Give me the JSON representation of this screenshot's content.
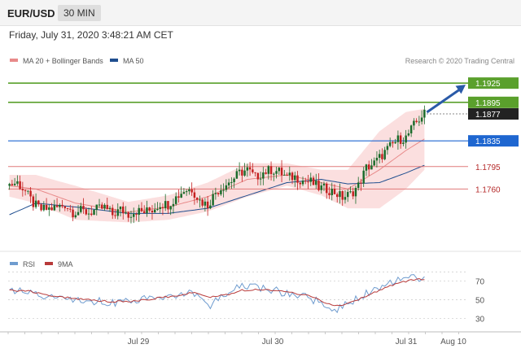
{
  "header": {
    "symbol": "EUR/USD",
    "timeframe": "30 MIN",
    "datetime": "Friday, July 31, 2020 3:48:21 AM CET"
  },
  "legend": {
    "items": [
      {
        "label": "MA 20 + Bollinger Bands",
        "color": "#e88a8a"
      },
      {
        "label": "MA 50",
        "color": "#1f4e8f"
      }
    ],
    "credit": "Research © 2020 Trading Central"
  },
  "colors": {
    "resistance": "#5aa02c",
    "pivot": "#1e66d0",
    "support": "#e07a7a",
    "support_text": "#b52a2a",
    "last_price": "#222222",
    "candle_up": "#1a6b2a",
    "candle_down": "#c42020",
    "arrow": "#2a5aa8",
    "rsi": "#6f9ccf",
    "rsi_ma": "#b83a3a"
  },
  "chart_data": [
    {
      "type": "candlestick",
      "title": "",
      "x_ticks": [
        "Jul 29",
        "Jul 30",
        "Jul 31",
        "Aug 10"
      ],
      "ylim": [
        1.1668,
        1.1948
      ],
      "levels": [
        {
          "value": 1.1925,
          "label": "1.1925",
          "kind": "resistance"
        },
        {
          "value": 1.1895,
          "label": "1.1895",
          "kind": "resistance"
        },
        {
          "value": 1.1877,
          "label": "1.1877",
          "kind": "last"
        },
        {
          "value": 1.1835,
          "label": "1.1835",
          "kind": "pivot"
        },
        {
          "value": 1.1795,
          "label": "1.1795",
          "kind": "support"
        },
        {
          "value": 1.176,
          "label": "1.1760",
          "kind": "support"
        }
      ],
      "arrow": {
        "from": 1.1877,
        "to": 1.1925,
        "direction": "up"
      },
      "close_anchors": [
        [
          0,
          1.1767
        ],
        [
          3,
          1.177
        ],
        [
          6,
          1.1756
        ],
        [
          9,
          1.1737
        ],
        [
          12,
          1.1728
        ],
        [
          15,
          1.1729
        ],
        [
          18,
          1.1731
        ],
        [
          21,
          1.1736
        ],
        [
          24,
          1.1724
        ],
        [
          27,
          1.1726
        ],
        [
          30,
          1.1723
        ],
        [
          33,
          1.1728
        ],
        [
          36,
          1.1731
        ],
        [
          39,
          1.172
        ],
        [
          42,
          1.1728
        ],
        [
          45,
          1.1721
        ],
        [
          48,
          1.1726
        ],
        [
          51,
          1.1724
        ],
        [
          54,
          1.1728
        ],
        [
          57,
          1.1737
        ],
        [
          60,
          1.1736
        ],
        [
          63,
          1.1747
        ],
        [
          66,
          1.1758
        ],
        [
          69,
          1.176
        ],
        [
          72,
          1.1742
        ],
        [
          75,
          1.1735
        ],
        [
          78,
          1.1755
        ],
        [
          81,
          1.1765
        ],
        [
          84,
          1.1773
        ],
        [
          87,
          1.1785
        ],
        [
          90,
          1.179
        ],
        [
          93,
          1.1778
        ],
        [
          96,
          1.1786
        ],
        [
          99,
          1.179
        ],
        [
          102,
          1.1787
        ],
        [
          105,
          1.1778
        ],
        [
          108,
          1.1779
        ],
        [
          111,
          1.1773
        ],
        [
          114,
          1.1771
        ],
        [
          117,
          1.1762
        ],
        [
          120,
          1.176
        ],
        [
          123,
          1.1755
        ],
        [
          126,
          1.1747
        ],
        [
          129,
          1.1752
        ],
        [
          132,
          1.1765
        ],
        [
          135,
          1.1793
        ],
        [
          138,
          1.18
        ],
        [
          141,
          1.1813
        ],
        [
          144,
          1.1826
        ],
        [
          147,
          1.1837
        ],
        [
          150,
          1.184
        ],
        [
          153,
          1.1859
        ],
        [
          156,
          1.1874
        ],
        [
          157,
          1.1877
        ]
      ],
      "ma20_bollinger": {
        "mid": [
          [
            0,
            1.1765
          ],
          [
            10,
            1.176
          ],
          [
            25,
            1.1738
          ],
          [
            45,
            1.1724
          ],
          [
            60,
            1.1732
          ],
          [
            75,
            1.1748
          ],
          [
            90,
            1.1775
          ],
          [
            105,
            1.1782
          ],
          [
            118,
            1.177
          ],
          [
            128,
            1.176
          ],
          [
            140,
            1.179
          ],
          [
            150,
            1.182
          ],
          [
            157,
            1.1838
          ]
        ],
        "upper": [
          [
            0,
            1.1782
          ],
          [
            10,
            1.1782
          ],
          [
            25,
            1.1765
          ],
          [
            45,
            1.174
          ],
          [
            60,
            1.175
          ],
          [
            75,
            1.177
          ],
          [
            90,
            1.18
          ],
          [
            105,
            1.18
          ],
          [
            118,
            1.179
          ],
          [
            128,
            1.179
          ],
          [
            140,
            1.185
          ],
          [
            150,
            1.188
          ],
          [
            157,
            1.1885
          ]
        ],
        "lower": [
          [
            0,
            1.1748
          ],
          [
            10,
            1.1738
          ],
          [
            25,
            1.1712
          ],
          [
            45,
            1.1708
          ],
          [
            60,
            1.1712
          ],
          [
            75,
            1.1725
          ],
          [
            90,
            1.1748
          ],
          [
            105,
            1.1765
          ],
          [
            118,
            1.175
          ],
          [
            128,
            1.173
          ],
          [
            140,
            1.173
          ],
          [
            150,
            1.176
          ],
          [
            157,
            1.179
          ]
        ]
      },
      "ma50": [
        [
          0,
          1.172
        ],
        [
          10,
          1.1738
        ],
        [
          25,
          1.1732
        ],
        [
          45,
          1.1722
        ],
        [
          60,
          1.1722
        ],
        [
          75,
          1.173
        ],
        [
          90,
          1.175
        ],
        [
          105,
          1.177
        ],
        [
          118,
          1.1775
        ],
        [
          128,
          1.1768
        ],
        [
          140,
          1.177
        ],
        [
          150,
          1.1785
        ],
        [
          157,
          1.1797
        ]
      ]
    },
    {
      "type": "line",
      "title": "",
      "series": [
        {
          "name": "RSI",
          "values": [
            [
              0,
              61
            ],
            [
              8,
              60
            ],
            [
              14,
              52
            ],
            [
              22,
              51
            ],
            [
              30,
              49
            ],
            [
              38,
              47
            ],
            [
              46,
              48
            ],
            [
              54,
              52
            ],
            [
              62,
              55
            ],
            [
              70,
              58
            ],
            [
              76,
              43
            ],
            [
              82,
              58
            ],
            [
              88,
              64
            ],
            [
              96,
              62
            ],
            [
              104,
              58
            ],
            [
              112,
              53
            ],
            [
              118,
              46
            ],
            [
              122,
              38
            ],
            [
              126,
              43
            ],
            [
              132,
              52
            ],
            [
              138,
              61
            ],
            [
              144,
              69
            ],
            [
              150,
              73
            ],
            [
              155,
              74
            ],
            [
              157,
              73
            ]
          ]
        },
        {
          "name": "9MA",
          "values": [
            [
              0,
              60
            ],
            [
              8,
              59
            ],
            [
              14,
              55
            ],
            [
              22,
              52
            ],
            [
              30,
              50
            ],
            [
              38,
              48
            ],
            [
              46,
              48
            ],
            [
              54,
              51
            ],
            [
              62,
              54
            ],
            [
              70,
              58
            ],
            [
              76,
              53
            ],
            [
              82,
              55
            ],
            [
              88,
              60
            ],
            [
              96,
              61
            ],
            [
              104,
              59
            ],
            [
              112,
              55
            ],
            [
              118,
              49
            ],
            [
              122,
              44
            ],
            [
              126,
              44
            ],
            [
              132,
              50
            ],
            [
              138,
              58
            ],
            [
              144,
              65
            ],
            [
              150,
              70
            ],
            [
              155,
              72
            ],
            [
              157,
              72
            ]
          ]
        }
      ],
      "yticks": [
        70,
        50,
        30
      ],
      "ylim": [
        18,
        82
      ]
    }
  ]
}
